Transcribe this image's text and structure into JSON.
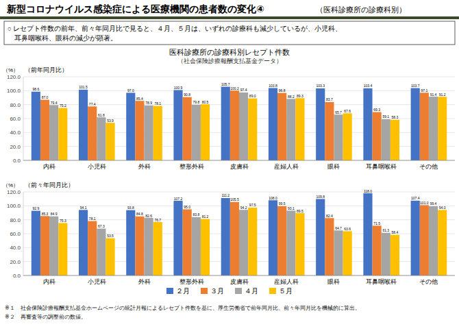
{
  "title": "新型コロナウイルス感染症による医療機関の患者数の変化④",
  "subtitle": "（医科診療所の診療科別）",
  "annotations": [
    "○ レセプト件数の前年、前々年同月比で見ると、４月、５月は、いずれの診療科も減少しているが、小児科、",
    "　耳鼻咽喉科、眼科の減少が顕著。"
  ],
  "chart_title": "医科診療所の診療科別レセプト件数",
  "chart_subtitle": "（社会保険診療報酬支払基金データ）",
  "notes": [
    "※１　社会保険診療報酬支払基金ホームページの統計月報によるレセプト件数を基に、厚生労働省で前年同月比、前々年同月比を機械的に算出。",
    "※２　再審査等の調整前の数値。"
  ],
  "chart_data": [
    {
      "type": "bar",
      "title": "（前年同月比）",
      "y_label": "（%）",
      "categories": [
        "内科",
        "小児科",
        "外科",
        "整形外科",
        "皮膚科",
        "産婦人科",
        "眼科",
        "耳鼻咽喉科",
        "その他"
      ],
      "series": [
        {
          "name": "２月",
          "color": "#4472C4",
          "values": [
            98.6,
            101.5,
            97.0,
            100.9,
            105.7,
            103.8,
            103.3,
            103.4,
            103.7
          ],
          "value_labels": [
            "98.6",
            "101.5",
            "97.0",
            "100.9",
            "105.7",
            "103.8",
            "103.3",
            "103.4",
            "103.7"
          ]
        },
        {
          "name": "３月",
          "color": "#ED7D31",
          "values": [
            87.0,
            77.4,
            85.4,
            90.8,
            100.2,
            96.8,
            83.7,
            69.3,
            97.1
          ],
          "value_labels": [
            "87.0",
            "77.4",
            "85.4",
            "90.8",
            "100.2",
            "96.8",
            "83.7",
            "69.3",
            "97.1"
          ]
        },
        {
          "name": "４月",
          "color": "#A5A5A5",
          "values": [
            79.4,
            61.8,
            78.9,
            79.8,
            97.4,
            88.2,
            65.7,
            59.1,
            91.4
          ]
        },
        {
          "name": "５月",
          "color": "#FFC000",
          "values": [
            75.2,
            53.9,
            78.1,
            80.5,
            89.0,
            89.3,
            67.6,
            58.3,
            91.2
          ],
          "value_labels": [
            "75.2",
            "53.9",
            "78.1",
            "80.5",
            "89.0",
            "89.3",
            "67.6",
            "58.3",
            "91.2"
          ]
        }
      ],
      "ylim": [
        0.0,
        120.0
      ],
      "yticks": [
        {
          "value": 0.0,
          "label": "0.0"
        },
        {
          "value": 20.0,
          "label": "20.0"
        },
        {
          "value": 40.0,
          "label": "40.0"
        },
        {
          "value": 60.0,
          "label": "60.0"
        },
        {
          "value": 80.0,
          "label": "80.0"
        },
        {
          "value": 100.0,
          "label": "100.0"
        },
        {
          "value": 120.0,
          "label": "120.0"
        }
      ],
      "grid": true,
      "data_labels": true
    },
    {
      "type": "bar",
      "title": "（前々年同月比）",
      "y_label": "（%）",
      "categories": [
        "内科",
        "小児科",
        "外科",
        "整形外科",
        "皮膚科",
        "産婦人科",
        "眼科",
        "耳鼻咽喉科",
        "その他"
      ],
      "series": [
        {
          "name": "２月",
          "color": "#4472C4",
          "values": [
            92.9,
            94.1,
            93.8,
            107.2,
            111.2,
            108.0,
            109.8,
            118.0,
            107.4
          ],
          "value_labels": [
            "92.9",
            "94.1",
            "93.8",
            "107.2",
            "111.2",
            "108.0",
            "109.8",
            "118.0",
            "107.4"
          ]
        },
        {
          "name": "３月",
          "color": "#ED7D31",
          "values": [
            85.3,
            78.1,
            84.8,
            95.0,
            105.5,
            99.5,
            82.4,
            71.5,
            101.0
          ],
          "value_labels": [
            "85.3",
            "78.1",
            "84.8",
            "95.0",
            "105.5",
            "99.5",
            "82.4",
            "71.5",
            "101.0"
          ]
        },
        {
          "name": "４月",
          "color": "#A5A5A5",
          "values": [
            84.9,
            67.3,
            82.6,
            83.8,
            94.2,
            93.1,
            64.7,
            61.3,
            99.4
          ]
        },
        {
          "name": "５月",
          "color": "#FFC000",
          "values": [
            75.3,
            53.5,
            76.7,
            81.2,
            97.5,
            89.5,
            63.6,
            58.4,
            94.0
          ],
          "value_labels": [
            "75.3",
            "53.5",
            "76.7",
            "81.2",
            "97.5",
            "89.5",
            "63.6",
            "58.4",
            "94.0"
          ]
        }
      ],
      "ylim": [
        0.0,
        120.0
      ],
      "yticks": [
        {
          "value": 0.0,
          "label": "0.0"
        },
        {
          "value": 20.0,
          "label": "20.0"
        },
        {
          "value": 40.0,
          "label": "40.0"
        },
        {
          "value": 60.0,
          "label": "60.0"
        },
        {
          "value": 80.0,
          "label": "80.0"
        },
        {
          "value": 100.0,
          "label": "100.0"
        },
        {
          "value": 120.0,
          "label": "120.0"
        }
      ],
      "grid": true,
      "data_labels": true,
      "legend": "bottom"
    }
  ]
}
